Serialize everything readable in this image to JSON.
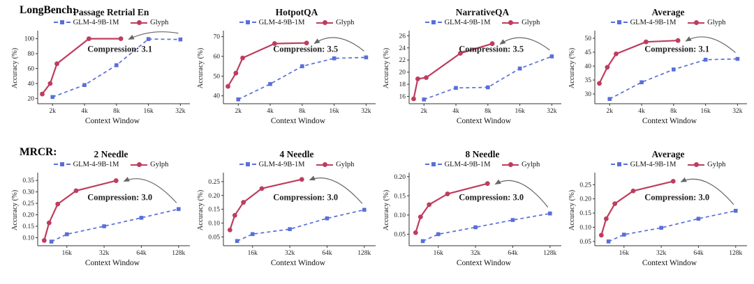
{
  "sections": {
    "longbench": "LongBench:",
    "mrcr": "MRCR:"
  },
  "accent_colors": {
    "glm": "#5a6fd6",
    "glyph": "#bd3d5e",
    "arrow": "#666666",
    "axis": "#333333",
    "annotation": "#222222"
  },
  "chart_data": [
    {
      "type": "line",
      "title": "Passage Retrial En",
      "xlabel": "Context Window",
      "ylabel": "Accuracy (%)",
      "x_scale": "log",
      "x_range": [
        1.45,
        37
      ],
      "x_ticks": [
        2,
        4,
        8,
        16,
        32
      ],
      "x_tick_labels": [
        "2k",
        "4k",
        "8k",
        "16k",
        "32k"
      ],
      "y_range": [
        13,
        108
      ],
      "y_ticks": [
        20,
        40,
        60,
        80,
        100
      ],
      "y_tick_labels": [
        "20",
        "40",
        "60",
        "80",
        "100"
      ],
      "annotation": "Compression: 3.1",
      "legend_position": "top",
      "series": [
        {
          "name": "GLM-4-9B-1M",
          "style": "dashed",
          "marker": "square",
          "color": "#5a6fd6",
          "x": [
            2,
            4,
            8,
            16,
            32
          ],
          "y": [
            22,
            38,
            64.5,
            99.5,
            99
          ]
        },
        {
          "name": "Glyph",
          "style": "solid",
          "marker": "circle",
          "color": "#bd3d5e",
          "x": [
            1.6,
            1.9,
            2.2,
            4.4,
            8.8
          ],
          "y": [
            26,
            40,
            66.5,
            100,
            100
          ]
        }
      ]
    },
    {
      "type": "line",
      "title": "HotpotQA",
      "xlabel": "Context Window",
      "ylabel": "Accuracy (%)",
      "x_scale": "log",
      "x_range": [
        1.45,
        37
      ],
      "x_ticks": [
        2,
        4,
        8,
        16,
        32
      ],
      "x_tick_labels": [
        "2k",
        "4k",
        "8k",
        "16k",
        "32k"
      ],
      "y_range": [
        36,
        72
      ],
      "y_ticks": [
        40,
        50,
        60,
        70
      ],
      "y_tick_labels": [
        "40",
        "50",
        "60",
        "70"
      ],
      "annotation": "Compression: 3.5",
      "legend_position": "top",
      "series": [
        {
          "name": "GLM-4-9B-1M",
          "style": "dashed",
          "marker": "square",
          "color": "#5a6fd6",
          "x": [
            2,
            4,
            8,
            16,
            32
          ],
          "y": [
            38.2,
            46,
            55,
            59,
            59.5
          ]
        },
        {
          "name": "Glyph",
          "style": "solid",
          "marker": "circle",
          "color": "#bd3d5e",
          "x": [
            1.6,
            1.9,
            2.2,
            4.4,
            8.8
          ],
          "y": [
            44.8,
            51.5,
            59.2,
            66.5,
            66.8
          ]
        }
      ]
    },
    {
      "type": "line",
      "title": "NarrativeQA",
      "xlabel": "Context Window",
      "ylabel": "Accuracy (%)",
      "x_scale": "log",
      "x_range": [
        1.45,
        37
      ],
      "x_ticks": [
        2,
        4,
        8,
        16,
        32
      ],
      "x_tick_labels": [
        "2k",
        "4k",
        "8k",
        "16k",
        "32k"
      ],
      "y_range": [
        14.8,
        26.5
      ],
      "y_ticks": [
        16,
        18,
        20,
        22,
        24,
        26
      ],
      "y_tick_labels": [
        "16",
        "18",
        "20",
        "22",
        "24",
        "26"
      ],
      "annotation": "Compression: 3.5",
      "legend_position": "top",
      "series": [
        {
          "name": "GLM-4-9B-1M",
          "style": "dashed",
          "marker": "square",
          "color": "#5a6fd6",
          "x": [
            2,
            4,
            8,
            16,
            32
          ],
          "y": [
            15.5,
            17.4,
            17.5,
            20.6,
            22.6
          ]
        },
        {
          "name": "Glyph",
          "style": "solid",
          "marker": "circle",
          "color": "#bd3d5e",
          "x": [
            1.6,
            1.75,
            2.1,
            4.4,
            8.8
          ],
          "y": [
            15.6,
            18.9,
            19.1,
            23.1,
            24.7
          ]
        }
      ]
    },
    {
      "type": "line",
      "title": "Average",
      "xlabel": "Context Window",
      "ylabel": "Accuracy (%)",
      "x_scale": "log",
      "x_range": [
        1.45,
        37
      ],
      "x_ticks": [
        2,
        4,
        8,
        16,
        32
      ],
      "x_tick_labels": [
        "2k",
        "4k",
        "8k",
        "16k",
        "32k"
      ],
      "y_range": [
        26.5,
        52
      ],
      "y_ticks": [
        30,
        35,
        40,
        45,
        50
      ],
      "y_tick_labels": [
        "30",
        "35",
        "40",
        "45",
        "50"
      ],
      "annotation": "Compression: 3.1",
      "legend_position": "top",
      "series": [
        {
          "name": "GLM-4-9B-1M",
          "style": "dashed",
          "marker": "square",
          "color": "#5a6fd6",
          "x": [
            2,
            4,
            8,
            16,
            32
          ],
          "y": [
            28.2,
            34.2,
            38.8,
            42.3,
            42.6
          ]
        },
        {
          "name": "Glyph",
          "style": "solid",
          "marker": "circle",
          "color": "#bd3d5e",
          "x": [
            1.6,
            1.9,
            2.3,
            4.4,
            8.8
          ],
          "y": [
            33.8,
            39.6,
            44.4,
            48.7,
            49.2
          ]
        }
      ]
    },
    {
      "type": "line",
      "title": "2 Needle",
      "xlabel": "Context Window",
      "ylabel": "Accuracy (%)",
      "x_scale": "log",
      "x_range": [
        9.3,
        150
      ],
      "x_ticks": [
        16,
        32,
        64,
        128
      ],
      "x_tick_labels": [
        "16k",
        "32k",
        "64k",
        "128k"
      ],
      "y_range": [
        0.065,
        0.375
      ],
      "y_ticks": [
        0.1,
        0.15,
        0.2,
        0.25,
        0.3,
        0.35
      ],
      "y_tick_labels": [
        "0.10",
        "0.15",
        "0.20",
        "0.25",
        "0.30",
        "0.35"
      ],
      "annotation": "Compression: 3.0",
      "legend_position": "top",
      "series": [
        {
          "name": "GLM-4-9B-1M",
          "style": "dashed",
          "marker": "square",
          "color": "#5a6fd6",
          "x": [
            12,
            16,
            32,
            64,
            128
          ],
          "y": [
            0.083,
            0.115,
            0.15,
            0.187,
            0.225
          ]
        },
        {
          "name": "Gylph",
          "style": "solid",
          "marker": "circle",
          "color": "#bd3d5e",
          "x": [
            10.5,
            11.5,
            13.5,
            19,
            40
          ],
          "y": [
            0.088,
            0.165,
            0.247,
            0.305,
            0.349
          ]
        }
      ]
    },
    {
      "type": "line",
      "title": "4 Needle",
      "xlabel": "Context Window",
      "ylabel": "Accuracy (%)",
      "x_scale": "log",
      "x_range": [
        9.3,
        150
      ],
      "x_ticks": [
        16,
        32,
        64,
        128
      ],
      "x_tick_labels": [
        "16k",
        "32k",
        "64k",
        "128k"
      ],
      "y_range": [
        0.018,
        0.275
      ],
      "y_ticks": [
        0.05,
        0.1,
        0.15,
        0.2,
        0.25
      ],
      "y_tick_labels": [
        "0.05",
        "0.10",
        "0.15",
        "0.20",
        "0.25"
      ],
      "annotation": "Compression: 3.0",
      "legend_position": "top",
      "series": [
        {
          "name": "GLM-4-9B-1M",
          "style": "dashed",
          "marker": "square",
          "color": "#5a6fd6",
          "x": [
            12,
            16,
            32,
            64,
            128
          ],
          "y": [
            0.035,
            0.06,
            0.078,
            0.117,
            0.148
          ]
        },
        {
          "name": "Gylph",
          "style": "solid",
          "marker": "circle",
          "color": "#bd3d5e",
          "x": [
            10.5,
            11.5,
            13.5,
            19,
            40
          ],
          "y": [
            0.075,
            0.128,
            0.175,
            0.225,
            0.258
          ]
        }
      ]
    },
    {
      "type": "line",
      "title": "8 Needle",
      "xlabel": "Context Window",
      "ylabel": "Accuracy (%)",
      "x_scale": "log",
      "x_range": [
        9.3,
        150
      ],
      "x_ticks": [
        16,
        32,
        64,
        128
      ],
      "x_tick_labels": [
        "16k",
        "32k",
        "64k",
        "128k"
      ],
      "y_range": [
        0.02,
        0.205
      ],
      "y_ticks": [
        0.05,
        0.1,
        0.15,
        0.2
      ],
      "y_tick_labels": [
        "0.05",
        "0.10",
        "0.15",
        "0.20"
      ],
      "annotation": "Compression: 3.0",
      "legend_position": "top",
      "series": [
        {
          "name": "GLM-4-9B-1M",
          "style": "dashed",
          "marker": "square",
          "color": "#5a6fd6",
          "x": [
            12,
            16,
            32,
            64,
            128
          ],
          "y": [
            0.032,
            0.05,
            0.068,
            0.087,
            0.104
          ]
        },
        {
          "name": "Gylph",
          "style": "solid",
          "marker": "circle",
          "color": "#bd3d5e",
          "x": [
            10.5,
            11.5,
            13.5,
            19,
            40
          ],
          "y": [
            0.054,
            0.095,
            0.127,
            0.155,
            0.182
          ]
        }
      ]
    },
    {
      "type": "line",
      "title": "Average",
      "xlabel": "Context Window",
      "ylabel": "Accuracy (%)",
      "x_scale": "log",
      "x_range": [
        9.3,
        150
      ],
      "x_ticks": [
        16,
        32,
        64,
        128
      ],
      "x_tick_labels": [
        "16k",
        "32k",
        "64k",
        "128k"
      ],
      "y_range": [
        0.035,
        0.285
      ],
      "y_ticks": [
        0.05,
        0.1,
        0.15,
        0.2,
        0.25
      ],
      "y_tick_labels": [
        "0.05",
        "0.10",
        "0.15",
        "0.20",
        "0.25"
      ],
      "annotation": "Compression: 3.0",
      "legend_position": "top",
      "series": [
        {
          "name": "GLM-4-9B-1M",
          "style": "dashed",
          "marker": "square",
          "color": "#5a6fd6",
          "x": [
            12,
            16,
            32,
            64,
            128
          ],
          "y": [
            0.05,
            0.074,
            0.098,
            0.13,
            0.158
          ]
        },
        {
          "name": "Gylph",
          "style": "solid",
          "marker": "circle",
          "color": "#bd3d5e",
          "x": [
            10.5,
            11.5,
            13.5,
            19,
            40
          ],
          "y": [
            0.072,
            0.13,
            0.183,
            0.228,
            0.262
          ]
        }
      ]
    }
  ]
}
